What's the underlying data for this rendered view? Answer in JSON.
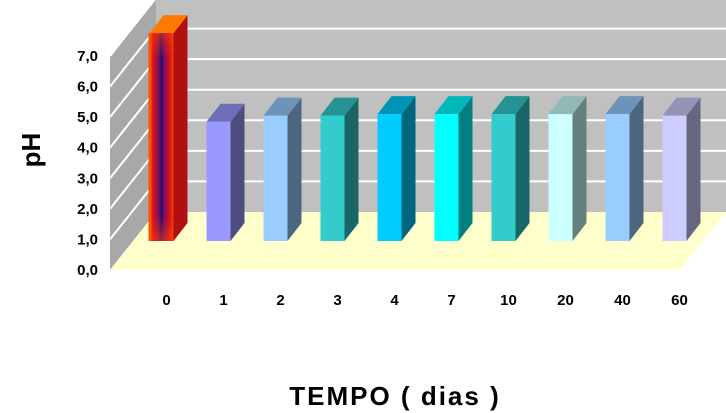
{
  "chart_data": {
    "type": "bar",
    "title": "",
    "xlabel": "TEMPO ( dias )",
    "ylabel": "pH",
    "categories": [
      "0",
      "1",
      "2",
      "3",
      "4",
      "7",
      "10",
      "20",
      "40",
      "60"
    ],
    "values": [
      6.8,
      3.9,
      4.1,
      4.1,
      4.15,
      4.15,
      4.15,
      4.15,
      4.15,
      4.1
    ],
    "ylim": [
      0,
      7
    ],
    "y_tick_labels": [
      "0,0",
      "1,0",
      "2,0",
      "3,0",
      "4,0",
      "5,0",
      "6,0",
      "7,0"
    ],
    "grid": true,
    "legend": "none",
    "bar_style": "3d",
    "colors": {
      "wall": "#c0c0c0",
      "floor": "#ffffcc",
      "gridline": "#ffffff",
      "bars": [
        "#d21818",
        "#9999ff",
        "#99ccff",
        "#33cccc",
        "#00ccff",
        "#00ffff",
        "#33cccc",
        "#ccffff",
        "#99ccff",
        "#ccccff"
      ]
    }
  }
}
